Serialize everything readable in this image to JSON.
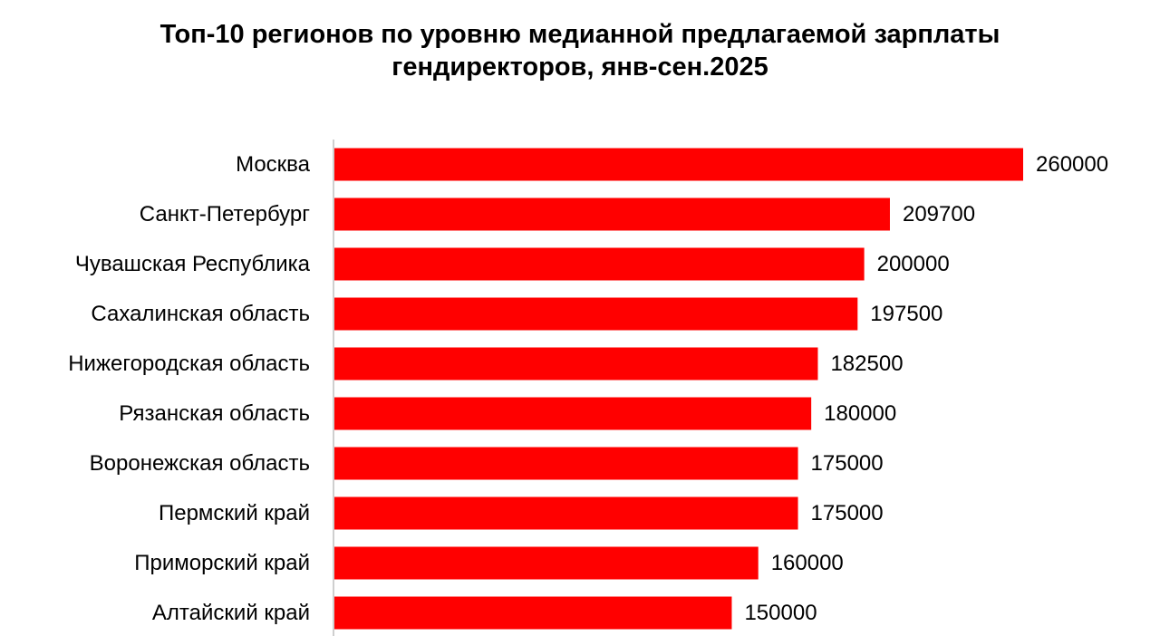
{
  "title_line1": "Топ-10 регионов по уровню медианной предлагаемой зарплаты",
  "title_line2": "гендиректоров, янв-сен.2025",
  "colors": {
    "bar": "#ff0000",
    "axis": "#bfbfbf"
  },
  "chart_data": {
    "type": "bar",
    "orientation": "horizontal",
    "title": "Топ-10 регионов по уровню медианной предлагаемой зарплаты гендиректоров, янв-сен.2025",
    "xlabel": "",
    "ylabel": "",
    "categories": [
      "Москва",
      "Санкт-Петербург",
      "Чувашская Республика",
      "Сахалинская область",
      "Нижегородская область",
      "Рязанская область",
      "Воронежская область",
      "Пермский край",
      "Приморский край",
      "Алтайский край"
    ],
    "values": [
      260000,
      209700,
      200000,
      197500,
      182500,
      180000,
      175000,
      175000,
      160000,
      150000
    ],
    "xlim": [
      0,
      260000
    ],
    "grid": false,
    "legend": "none",
    "data_labels": true
  }
}
